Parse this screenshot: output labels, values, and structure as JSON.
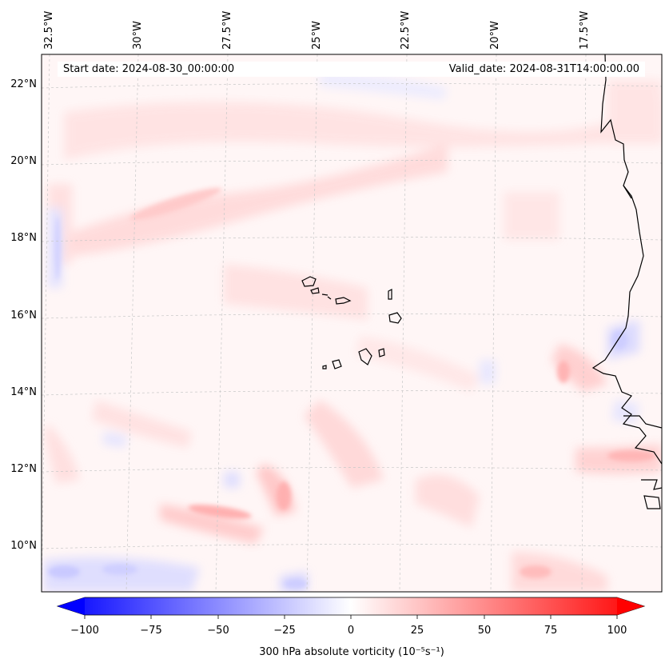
{
  "map": {
    "title_left": "Start date: 2024-08-30_00:00:00",
    "title_right": "Valid_date: 2024-08-31T14:00:00.00",
    "variable": "300 hPa absolute vorticity",
    "units_label": "300 hPa absolute vorticity (10⁻⁵s⁻¹)",
    "region": "Cape Verde / West African coast",
    "extent": {
      "lon_min": -33.0,
      "lon_max": -16.0,
      "lat_min": 9.0,
      "lat_max": 22.8
    },
    "gridlines": true
  },
  "longitude_labels": [
    "32.5°W",
    "30°W",
    "27.5°W",
    "25°W",
    "22.5°W",
    "20°W",
    "17.5°W"
  ],
  "latitude_labels": [
    "22°N",
    "20°N",
    "18°N",
    "16°N",
    "14°N",
    "12°N",
    "10°N"
  ],
  "colorbar": {
    "cmap": "bwr",
    "min": -100,
    "max": 100,
    "extend": "both",
    "ticks": [
      "−100",
      "−75",
      "−50",
      "−25",
      "0",
      "25",
      "50",
      "75",
      "100"
    ],
    "colors": {
      "negative": "#0000ff",
      "zero": "#ffffff",
      "positive": "#ff0000"
    }
  },
  "features": [
    "coastline-africa",
    "cape-verde-islands"
  ]
}
